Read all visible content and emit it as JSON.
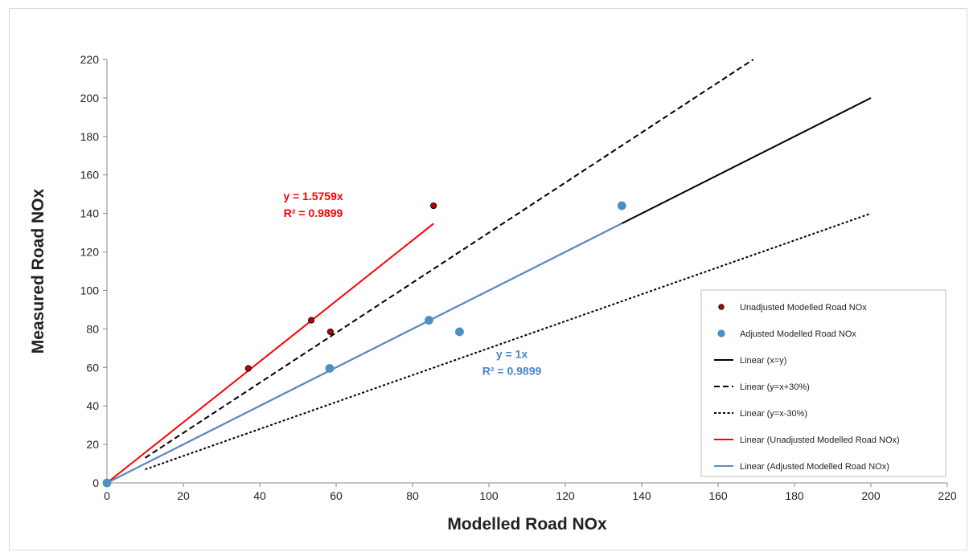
{
  "chart_data": {
    "type": "scatter",
    "xlabel": "Modelled Road NOx",
    "ylabel": "Measured Road NOx",
    "xlim": [
      0,
      220
    ],
    "ylim": [
      0,
      220
    ],
    "xticks": [
      0,
      20,
      40,
      60,
      80,
      100,
      120,
      140,
      160,
      180,
      200,
      220
    ],
    "yticks": [
      0,
      20,
      40,
      60,
      80,
      100,
      120,
      140,
      160,
      180,
      200,
      220
    ],
    "grid": false,
    "legend_position": "bottom-right",
    "series": [
      {
        "name": "Unadjusted Modelled Road NOx",
        "kind": "scatter",
        "color": "#c00000",
        "points": [
          [
            0,
            0
          ],
          [
            37,
            59.5
          ],
          [
            53.5,
            84.5
          ],
          [
            58.5,
            78.5
          ],
          [
            85.5,
            144
          ]
        ]
      },
      {
        "name": "Adjusted Modelled Road NOx",
        "kind": "scatter",
        "color": "#4a90c4",
        "points": [
          [
            0,
            0
          ],
          [
            58.3,
            59.5
          ],
          [
            84.3,
            84.5
          ],
          [
            92.3,
            78.5
          ],
          [
            134.8,
            144
          ]
        ]
      },
      {
        "name": "Linear (x=y)",
        "kind": "line",
        "color": "#000000",
        "dash": "solid",
        "points": [
          [
            0,
            0
          ],
          [
            200,
            200
          ]
        ]
      },
      {
        "name": "Linear (y=x+30%)",
        "kind": "line",
        "color": "#000000",
        "dash": "dashed",
        "points": [
          [
            10,
            13
          ],
          [
            169.2,
            220
          ]
        ]
      },
      {
        "name": "Linear (y=x-30%)",
        "kind": "line",
        "color": "#000000",
        "dash": "dotted",
        "points": [
          [
            10,
            7
          ],
          [
            200,
            140
          ]
        ]
      },
      {
        "name": "Linear (Unadjusted Modelled Road NOx)",
        "kind": "line",
        "color": "#ff0000",
        "dash": "solid",
        "points": [
          [
            0,
            0
          ],
          [
            85.5,
            134.7
          ]
        ]
      },
      {
        "name": "Linear (Adjusted Modelled Road NOx)",
        "kind": "line",
        "color": "#5b8ec9",
        "dash": "solid",
        "points": [
          [
            0,
            0
          ],
          [
            134.8,
            134.8
          ]
        ]
      }
    ],
    "annotations": [
      {
        "lines": [
          "y = 1.5759x",
          "R² = 0.9899"
        ],
        "color": "#ff0000",
        "at": [
          54,
          147
        ]
      },
      {
        "lines": [
          "y = 1x",
          "R² = 0.9899"
        ],
        "color": "#4a86c8",
        "at": [
          106,
          65
        ]
      }
    ]
  }
}
